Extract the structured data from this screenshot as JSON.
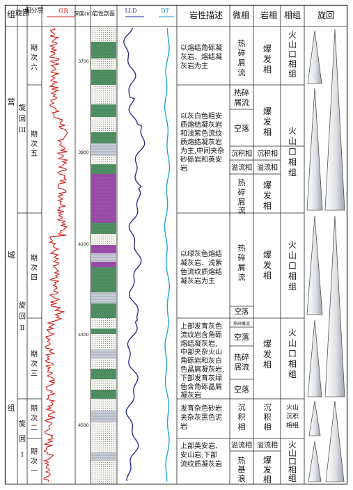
{
  "headers": {
    "formation": "组",
    "cycle": "旋回",
    "subdivision": "细分层",
    "gr": "GR",
    "depth": "深度(m)",
    "profile": "岩性剖面",
    "lld": "LLD",
    "dt": "DT",
    "description": "岩性描述",
    "microfacies": "微相",
    "lithofacies": "岩相",
    "faciesgroup": "相组",
    "cycle_right": "旋回"
  },
  "formation_chars": [
    "营",
    "城",
    "组"
  ],
  "cycles": [
    {
      "id": "III",
      "chars": [
        "旋",
        "回",
        "III"
      ]
    },
    {
      "id": "II",
      "chars": [
        "旋",
        "回",
        "II"
      ]
    },
    {
      "id": "I",
      "chars": [
        "旋",
        "回",
        "I"
      ]
    }
  ],
  "phases": [
    {
      "id": "p6",
      "chars": [
        "期",
        "次",
        "六"
      ]
    },
    {
      "id": "p5",
      "chars": [
        "期",
        "次",
        "五"
      ]
    },
    {
      "id": "p4",
      "chars": [
        "期",
        "次",
        "四"
      ]
    },
    {
      "id": "p3",
      "chars": [
        "期",
        "次",
        "三"
      ]
    },
    {
      "id": "p2",
      "chars": [
        "期",
        "次",
        "二"
      ]
    },
    {
      "id": "p1",
      "chars": [
        "期",
        "次",
        "一"
      ]
    }
  ],
  "depth_ticks": [
    "3700",
    "3800",
    "4100",
    "4300",
    "4500"
  ],
  "descriptions": [
    {
      "id": "d6",
      "lines": [
        "以熔结角砾凝",
        "灰岩、熔结凝",
        "灰岩为主"
      ]
    },
    {
      "id": "d5",
      "lines": [
        "以灰白色粗安",
        "质熔结凝灰岩",
        "和浅紫色流纹",
        "质熔结凝灰岩",
        "为主,中间夹杂",
        "砂砾岩和英安",
        "岩"
      ]
    },
    {
      "id": "d4",
      "lines": [
        "以绿灰色熔结",
        "凝灰岩、浅紫",
        "色流纹质熔结",
        "凝灰岩为主"
      ]
    },
    {
      "id": "d3",
      "lines": [
        "上部发育灰色",
        "流纹岩含角砾",
        "熔结凝灰岩,",
        "中部夹杂火山",
        "角砾岩和灰白",
        "色晶屑凝灰岩,",
        "下部发育灰绿",
        "色含角砾晶屑",
        "凝灰岩"
      ]
    },
    {
      "id": "d2",
      "lines": [
        "发育杂色砂岩",
        "夹杂灰黑色泥",
        "岩"
      ]
    },
    {
      "id": "d1",
      "lines": [
        "上部英安岩、",
        "安山岩,下部",
        "流纹质凝灰岩"
      ]
    }
  ],
  "microfacies": [
    {
      "id": "m1",
      "chars": [
        "热",
        "碎",
        "屑",
        "流"
      ]
    },
    {
      "id": "m2",
      "lines": [
        "热碎",
        "屑流"
      ]
    },
    {
      "id": "m3",
      "text": "空落"
    },
    {
      "id": "m4",
      "text": "沉积相"
    },
    {
      "id": "m5",
      "text": "溢流相"
    },
    {
      "id": "m6",
      "chars": [
        "热",
        "碎",
        "屑",
        "流"
      ]
    },
    {
      "id": "m7",
      "chars": [
        "热",
        "碎",
        "屑",
        "流"
      ]
    },
    {
      "id": "m8",
      "text": "空落"
    },
    {
      "id": "m9",
      "text": "热碎屑流"
    },
    {
      "id": "m10",
      "text": "空落"
    },
    {
      "id": "m11",
      "lines": [
        "热碎",
        "屑流"
      ]
    },
    {
      "id": "m12",
      "text": "空落"
    },
    {
      "id": "m13",
      "chars": [
        "沉",
        "积",
        "相"
      ]
    },
    {
      "id": "m14",
      "text": "溢流相"
    },
    {
      "id": "m15",
      "chars": [
        "热",
        "基",
        "浪"
      ]
    }
  ],
  "lithofacies": [
    {
      "id": "l1",
      "chars": [
        "爆",
        "发",
        "相"
      ]
    },
    {
      "id": "l2",
      "chars": [
        "爆",
        "发",
        "相"
      ]
    },
    {
      "id": "l3",
      "text": "沉积相"
    },
    {
      "id": "l4",
      "text": "溢流相"
    },
    {
      "id": "l5",
      "chars": [
        "爆",
        "发",
        "相"
      ]
    },
    {
      "id": "l6",
      "chars": [
        "爆",
        "发",
        "相"
      ]
    },
    {
      "id": "l7",
      "chars": [
        "爆",
        "发",
        "相"
      ]
    },
    {
      "id": "l8",
      "chars": [
        "沉",
        "积",
        "相"
      ]
    },
    {
      "id": "l9",
      "text": "溢流相"
    },
    {
      "id": "l10",
      "chars": [
        "爆",
        "发",
        "相"
      ]
    }
  ],
  "faciesgroups": [
    {
      "id": "f1",
      "chars": [
        "火",
        "山",
        "口",
        "相",
        "组"
      ]
    },
    {
      "id": "f2",
      "chars": [
        "火",
        "山",
        "口",
        "相",
        "组"
      ]
    },
    {
      "id": "f3",
      "chars": [
        "火",
        "山",
        "口",
        "相",
        "组"
      ]
    },
    {
      "id": "f4",
      "chars": [
        "火",
        "山",
        "口",
        "相",
        "组"
      ]
    },
    {
      "id": "f5",
      "lines": [
        "火山",
        "沉积",
        "相组"
      ]
    },
    {
      "id": "f6",
      "chars": [
        "火",
        "山",
        "口",
        "相",
        "组"
      ]
    }
  ]
}
